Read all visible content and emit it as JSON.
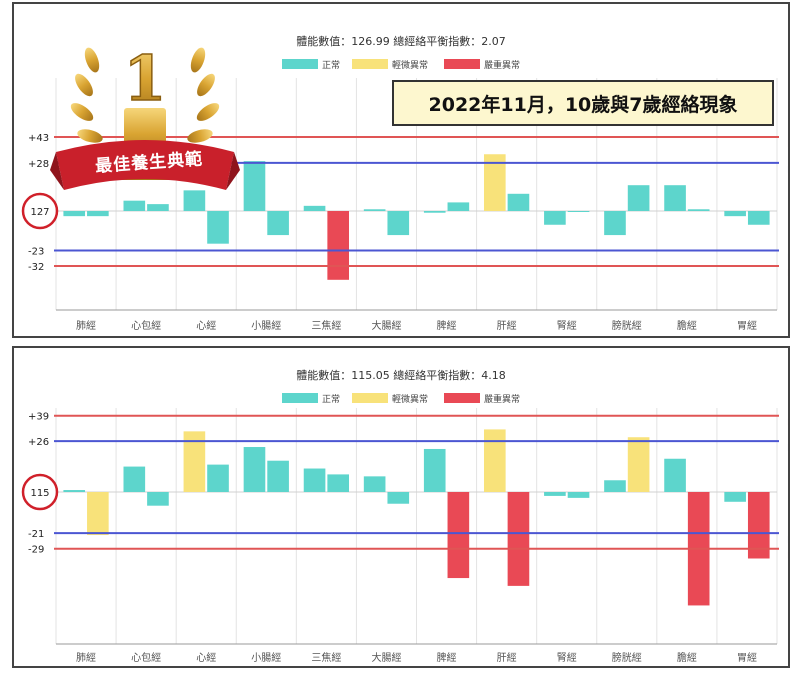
{
  "caption": "2022年11月，10歲與7歲經絡現象",
  "badge": {
    "text": "最佳養生典範",
    "numeral": "1"
  },
  "colors": {
    "normal": "#5dd5cc",
    "mild": "#f8e27a",
    "severe": "#e94955",
    "red_line": "#e05555",
    "blue_line": "#4b56d2",
    "axis": "#999999",
    "grid": "#e3e3e3"
  },
  "chart_data": [
    {
      "type": "bar",
      "title": "體能數值：126.99 總經絡平衡指數：2.07",
      "legend": [
        "正常",
        "輕微異常",
        "嚴重異常"
      ],
      "categories": [
        "肺經",
        "心包經",
        "心經",
        "小腸經",
        "三焦經",
        "大腸經",
        "脾經",
        "肝經",
        "腎經",
        "膀胱經",
        "膽經",
        "胃經"
      ],
      "baseline_label": "127",
      "ylim": [
        -55,
        65
      ],
      "ref_lines": [
        {
          "name": "H2",
          "value": 43,
          "tick": "+43",
          "color": "red"
        },
        {
          "name": "H1",
          "value": 28,
          "tick": "+28",
          "color": "blue"
        },
        {
          "name": "L1",
          "value": -23,
          "tick": "-23",
          "color": "blue"
        },
        {
          "name": "L2",
          "value": -32,
          "tick": "-32",
          "color": "red"
        }
      ],
      "series": [
        {
          "side": "left",
          "values": [
            -3,
            6,
            12,
            29,
            3,
            1,
            -1,
            33,
            -8,
            -14,
            15,
            -3
          ]
        },
        {
          "side": "right",
          "values": [
            -3,
            4,
            -19,
            -14,
            -40,
            -14,
            5,
            10,
            0,
            15,
            1,
            -8
          ]
        }
      ],
      "status": [
        [
          "normal",
          "normal",
          "normal",
          "normal",
          "normal",
          "normal",
          "normal",
          "mild",
          "normal",
          "normal",
          "normal",
          "normal"
        ],
        [
          "normal",
          "normal",
          "normal",
          "normal",
          "severe",
          "normal",
          "normal",
          "normal",
          "normal",
          "normal",
          "normal",
          "normal"
        ]
      ]
    },
    {
      "type": "bar",
      "title": "體能數值：115.05 總經絡平衡指數：4.18",
      "legend": [
        "正常",
        "輕微異常",
        "嚴重異常"
      ],
      "categories": [
        "肺經",
        "心包經",
        "心經",
        "小腸經",
        "三焦經",
        "大腸經",
        "脾經",
        "肝經",
        "腎經",
        "膀胱經",
        "膽經",
        "胃經"
      ],
      "baseline_label": "115",
      "ylim": [
        -85,
        44
      ],
      "ref_lines": [
        {
          "name": "H2",
          "value": 39,
          "tick": "+39",
          "color": "red"
        },
        {
          "name": "H1",
          "value": 26,
          "tick": "+26",
          "color": "blue"
        },
        {
          "name": "L1",
          "value": -21,
          "tick": "-21",
          "color": "blue"
        },
        {
          "name": "L2",
          "value": -29,
          "tick": "-29",
          "color": "red"
        }
      ],
      "series": [
        {
          "side": "left",
          "values": [
            1,
            13,
            31,
            23,
            12,
            8,
            22,
            32,
            -2,
            6,
            17,
            -5
          ]
        },
        {
          "side": "right",
          "values": [
            -22,
            -7,
            14,
            16,
            9,
            -6,
            -44,
            -48,
            -3,
            28,
            -58,
            -34
          ]
        }
      ],
      "status": [
        [
          "normal",
          "normal",
          "mild",
          "normal",
          "normal",
          "normal",
          "normal",
          "mild",
          "normal",
          "normal",
          "normal",
          "normal"
        ],
        [
          "mild",
          "normal",
          "normal",
          "normal",
          "normal",
          "normal",
          "severe",
          "severe",
          "normal",
          "mild",
          "severe",
          "severe"
        ]
      ]
    }
  ]
}
